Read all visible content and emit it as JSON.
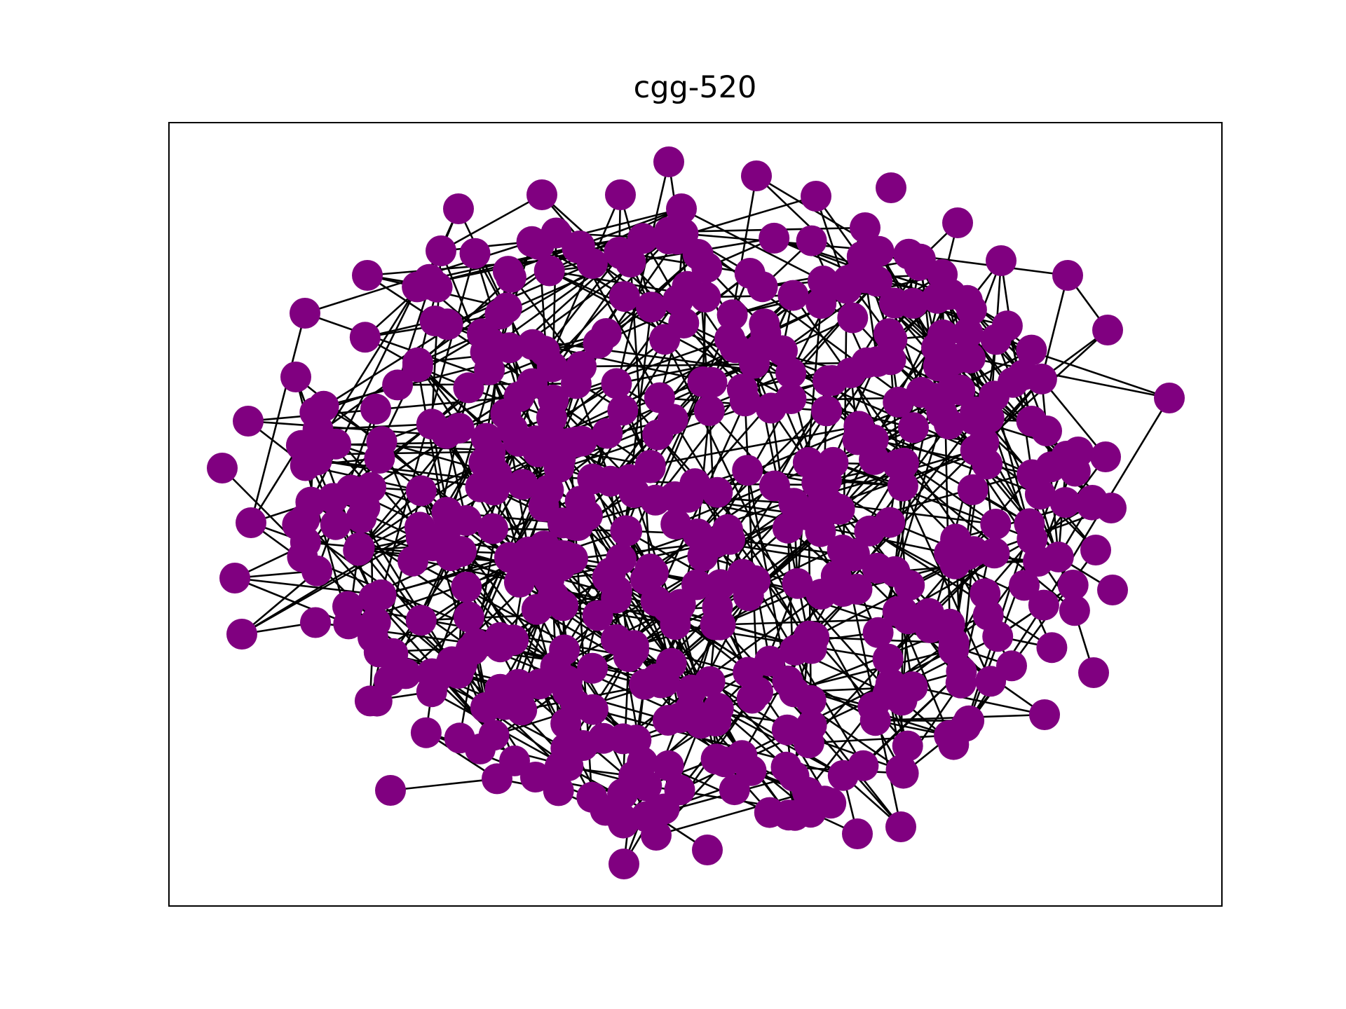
{
  "chart_data": {
    "type": "network",
    "title": "cgg-520",
    "node_color": "#800080",
    "edge_color": "#000000",
    "background": "#ffffff",
    "frame": true,
    "axes_ticks": false
  }
}
